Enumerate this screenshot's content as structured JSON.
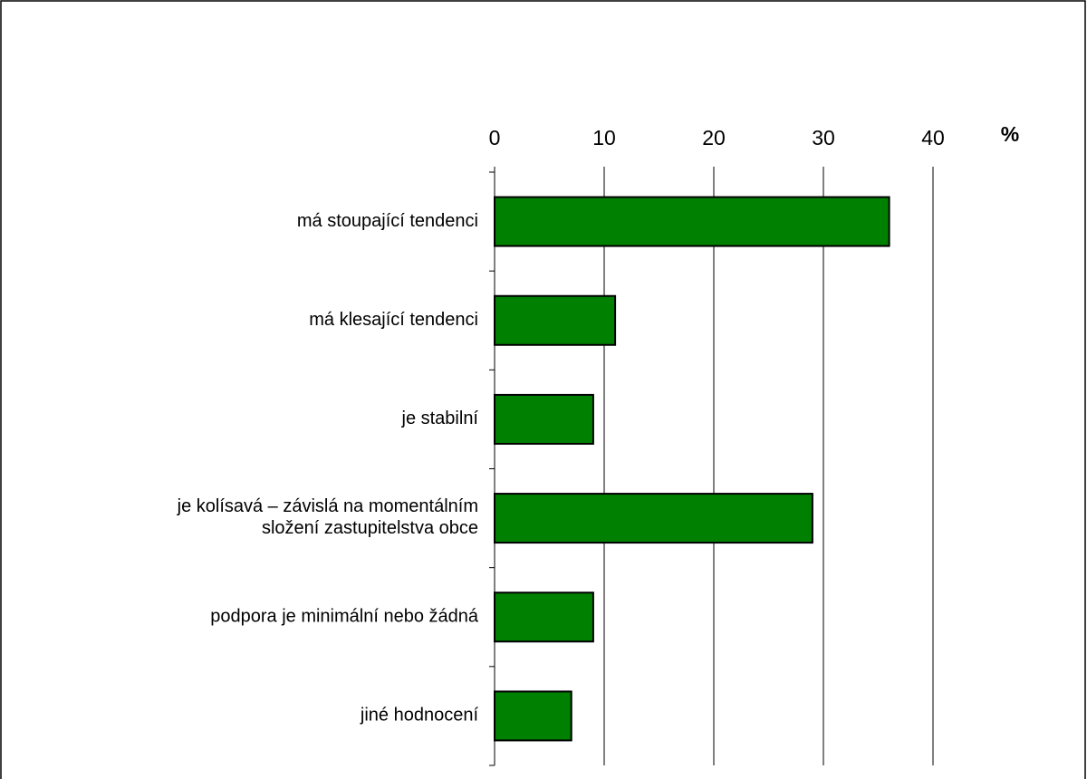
{
  "chart_data": {
    "type": "bar",
    "orientation": "horizontal",
    "axis_label": "%",
    "categories": [
      "má stoupající tendenci",
      "má klesající tendenci",
      "je stabilní",
      "je kolísavá – závislá na momentálním\nsložení zastupitelstva obce",
      "podpora je minimální nebo žádná",
      "jiné hodnocení"
    ],
    "values": [
      36,
      11,
      9,
      29,
      9,
      7
    ],
    "color": "#008000",
    "xlim": [
      0,
      40
    ],
    "xticks": [
      0,
      10,
      20,
      30,
      40
    ],
    "grid": true
  }
}
